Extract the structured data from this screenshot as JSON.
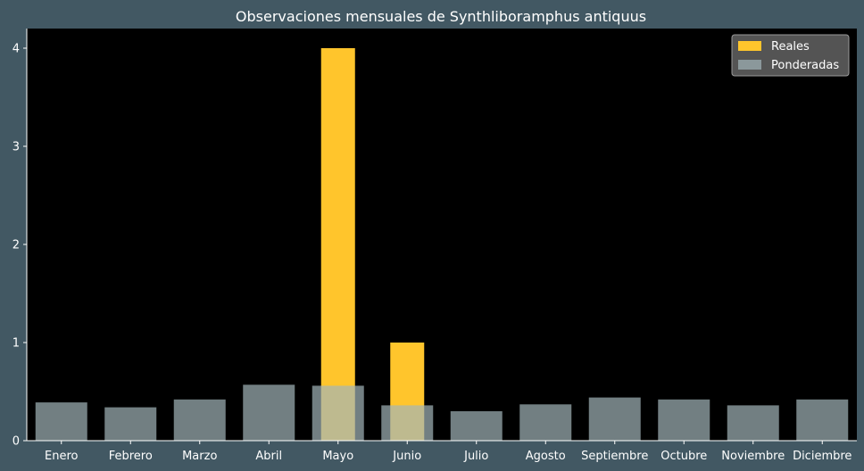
{
  "chart_data": {
    "type": "bar",
    "title": "Observaciones mensuales de Synthliboramphus antiquus",
    "xlabel": "",
    "ylabel": "",
    "categories": [
      "Enero",
      "Febrero",
      "Marzo",
      "Abril",
      "Mayo",
      "Junio",
      "Julio",
      "Agosto",
      "Septiembre",
      "Octubre",
      "Noviembre",
      "Diciembre"
    ],
    "series": [
      {
        "name": "Reales",
        "color": "#ffc52c",
        "values": [
          0,
          0,
          0,
          0,
          4,
          1,
          0,
          0,
          0,
          0,
          0,
          0
        ]
      },
      {
        "name": "Ponderadas",
        "color": "#a3b5b9",
        "opacity": 0.7,
        "values": [
          0.39,
          0.34,
          0.42,
          0.57,
          0.56,
          0.36,
          0.3,
          0.37,
          0.44,
          0.42,
          0.36,
          0.42
        ]
      }
    ],
    "ylim": [
      0,
      4.2
    ],
    "yticks": [
      "0",
      "1",
      "2",
      "3",
      "4"
    ],
    "grid": false,
    "legend_position": "top-right"
  },
  "colors": {
    "background": "#425863",
    "plot_background": "#000000",
    "text": "#ffffff",
    "legend_background": "#595959"
  }
}
